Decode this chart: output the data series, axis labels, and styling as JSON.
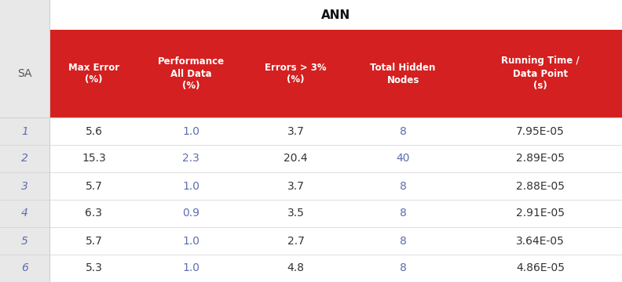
{
  "title": "ANN",
  "title_fontsize": 11,
  "header_bg_color": "#D42020",
  "header_text_color": "#FFFFFF",
  "sa_col_bg": "#E8E8E8",
  "body_bg_color": "#FFFFFF",
  "sa_label_color": "#5B6DAE",
  "col_colors": [
    "#333333",
    "#5B6DAE",
    "#333333",
    "#5B6DAE",
    "#333333"
  ],
  "headers": [
    "Max Error\n(%)",
    "Performance\nAll Data\n(%)",
    "Errors > 3%\n(%)",
    "Total Hidden\nNodes",
    "Running Time /\nData Point\n(s)"
  ],
  "sa_values": [
    "1",
    "2",
    "3",
    "4",
    "5",
    "6"
  ],
  "table_data": [
    [
      "5.6",
      "1.0",
      "3.7",
      "8",
      "7.95E-05"
    ],
    [
      "15.3",
      "2.3",
      "20.4",
      "40",
      "2.89E-05"
    ],
    [
      "5.7",
      "1.0",
      "3.7",
      "8",
      "2.88E-05"
    ],
    [
      "6.3",
      "0.9",
      "3.5",
      "8",
      "2.91E-05"
    ],
    [
      "5.7",
      "1.0",
      "2.7",
      "8",
      "3.64E-05"
    ],
    [
      "5.3",
      "1.0",
      "4.8",
      "8",
      "4.86E-05"
    ]
  ],
  "fig_bg": "#EBEBEB",
  "body_line_color": "#D0D0D0",
  "header_line_color": "#CCCCCC"
}
